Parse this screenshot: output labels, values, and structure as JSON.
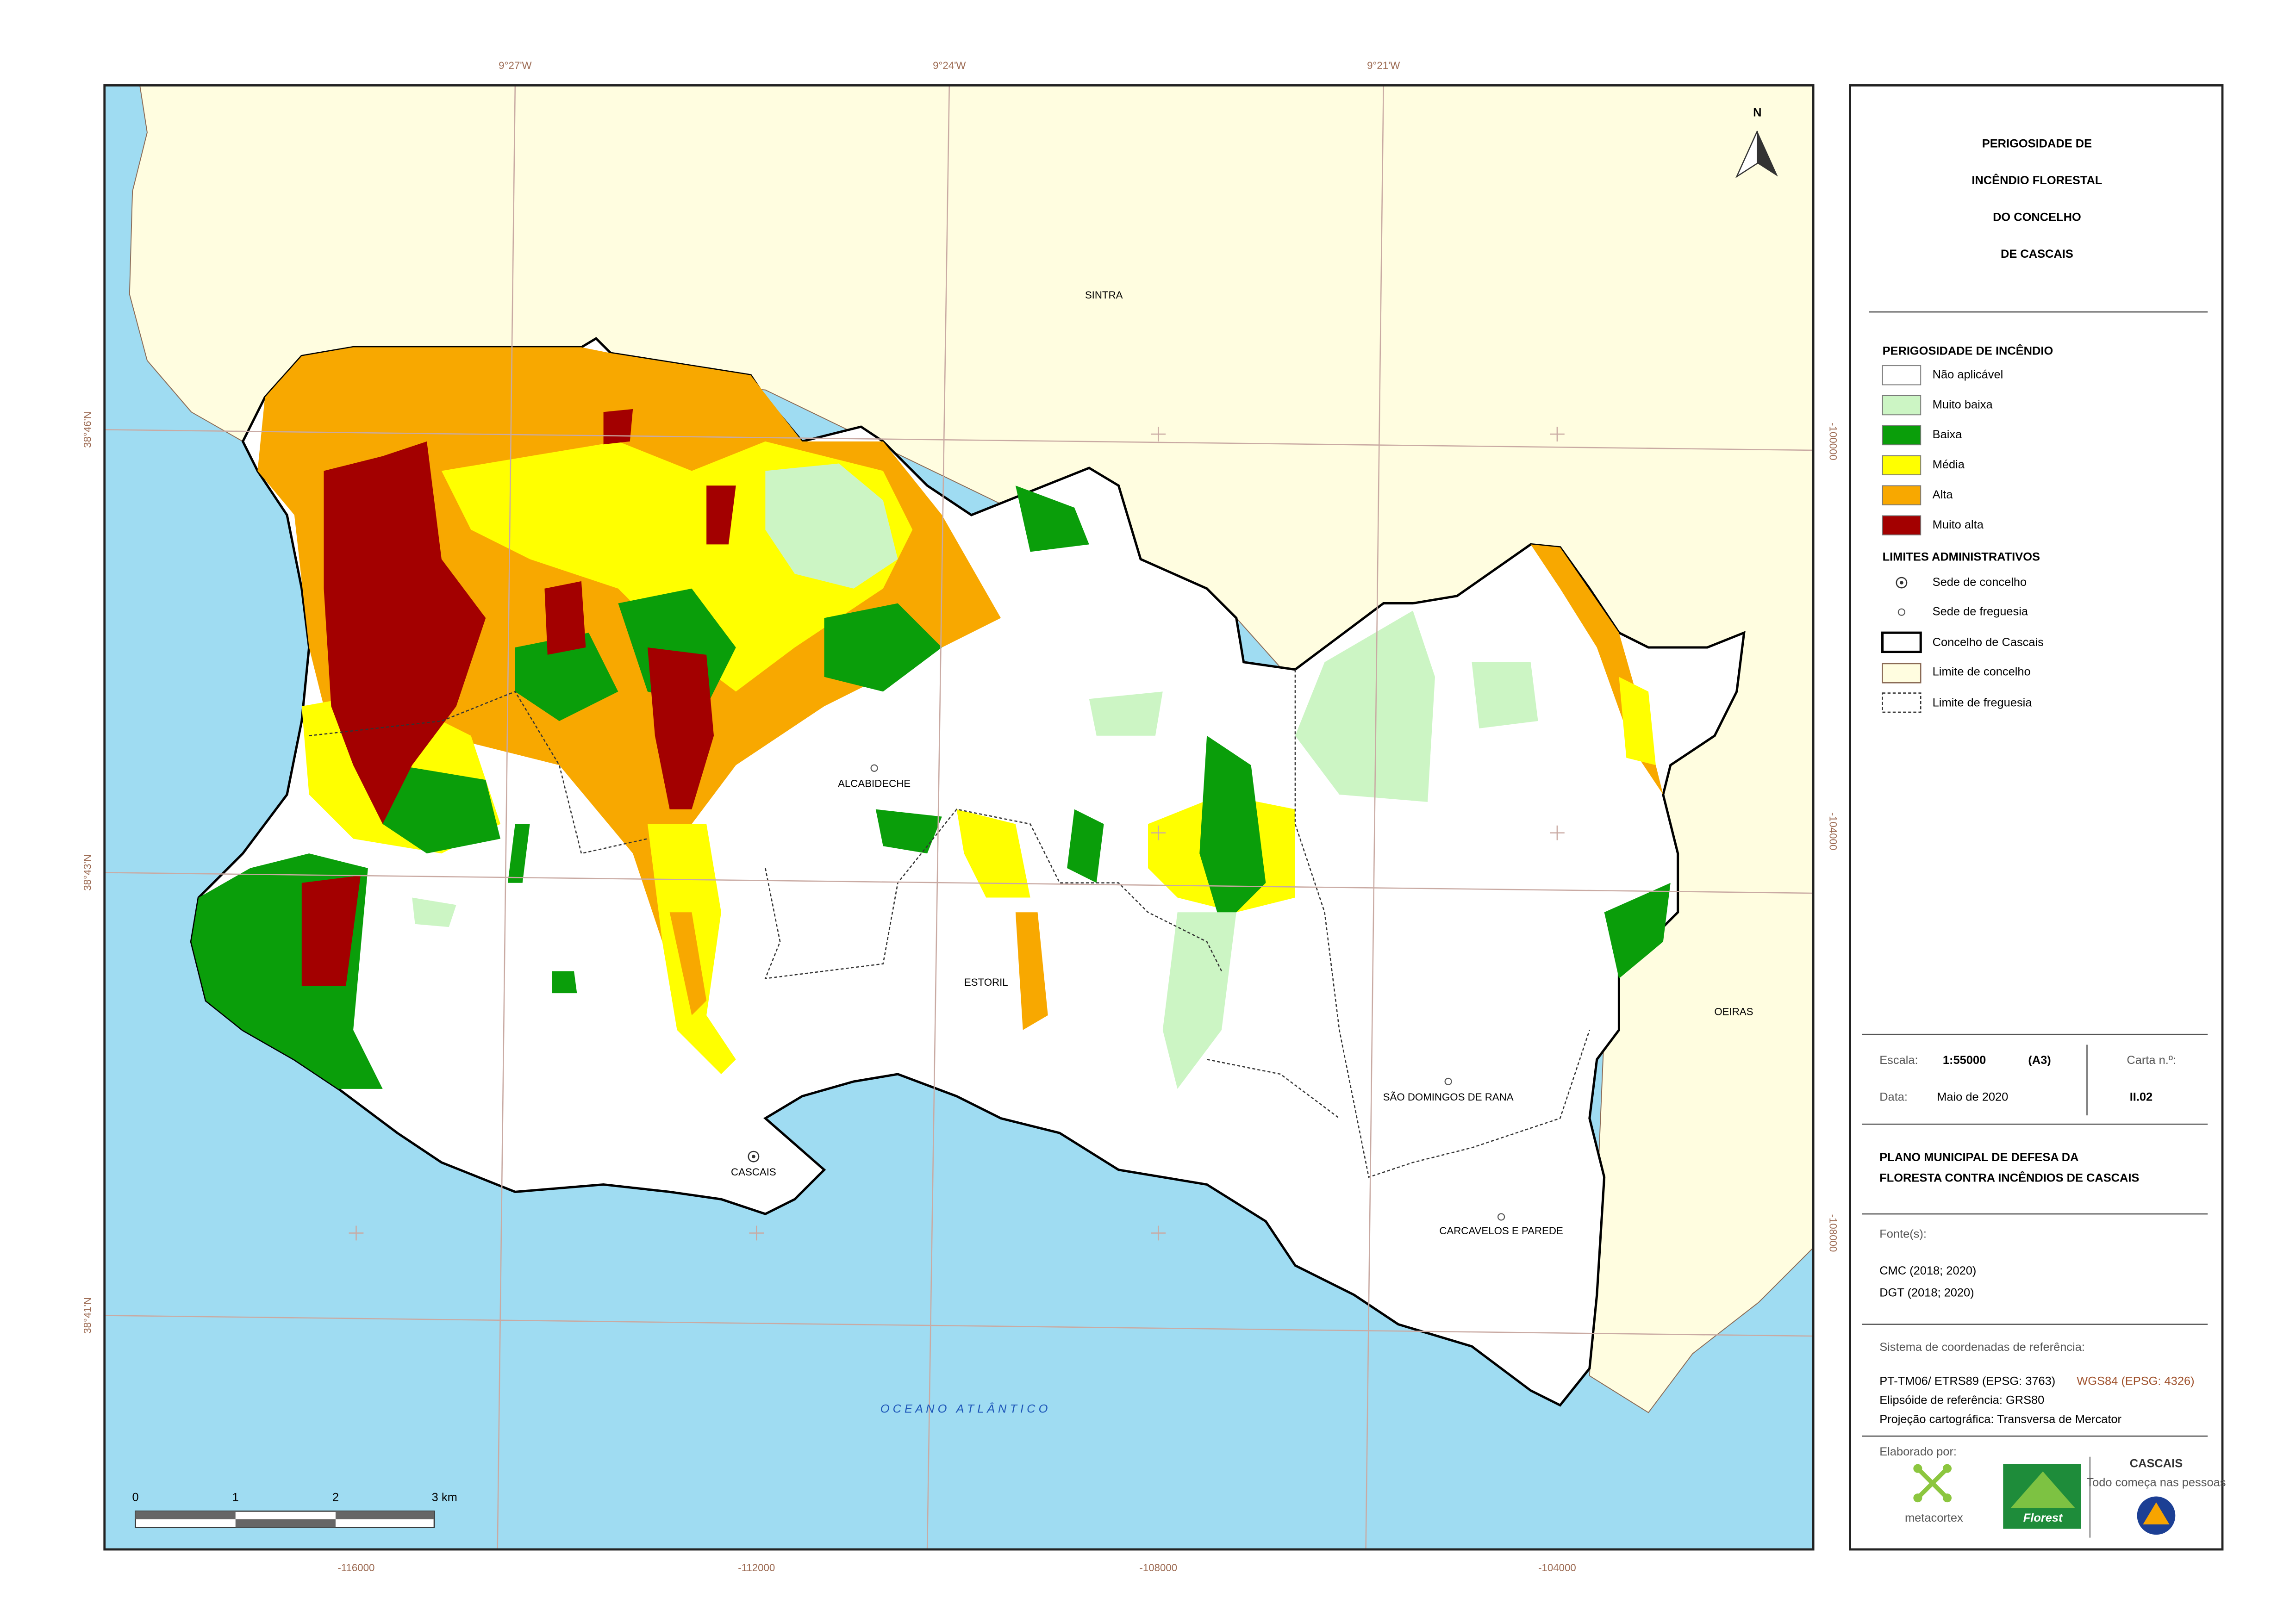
{
  "map": {
    "grid_labels": {
      "top": [
        "9°27'W",
        "9°24'W",
        "9°21'W"
      ],
      "left": [
        "38°46'N",
        "38°43'N",
        "38°41'N"
      ],
      "bottom": [
        "-116000",
        "-112000",
        "-108000",
        "-104000"
      ],
      "right": [
        "-100000",
        "-104000",
        "-108000"
      ]
    },
    "places": {
      "sintra": "SINTRA",
      "oeiras": "OEIRAS",
      "alcabideche": "ALCABIDECHE",
      "estoril": "ESTORIL",
      "sao_domingos": "SÃO DOMINGOS DE RANA",
      "cascais": "CASCAIS",
      "carcavelos": "CARCAVELOS E PAREDE"
    },
    "ocean": "O C E A N O   A T L Â N T I C O",
    "north": "N",
    "scale_bar": [
      "0",
      "1",
      "2",
      "3 km"
    ]
  },
  "panel": {
    "title": [
      "PERIGOSIDADE DE",
      "INCÊNDIO FLORESTAL",
      "DO CONCELHO",
      "DE CASCAIS"
    ],
    "legend": {
      "title": "PERIGOSIDADE DE INCÊNDIO",
      "items": [
        {
          "label": "Não aplicável",
          "color": "#ffffff"
        },
        {
          "label": "Muito baixa",
          "color": "#ccf5c4"
        },
        {
          "label": "Baixa",
          "color": "#0a9e0a"
        },
        {
          "label": "Média",
          "color": "#ffff00"
        },
        {
          "label": "Alta",
          "color": "#f8a800"
        },
        {
          "label": "Muito alta",
          "color": "#a30000"
        }
      ]
    },
    "admin": {
      "title": "LIMITES ADMINISTRATIVOS",
      "items": [
        "Sede de concelho",
        "Sede de freguesia",
        "Concelho de Cascais",
        "Limite de concelho",
        "Limite de freguesia"
      ]
    },
    "scale": {
      "label": "Escala:",
      "value": "1:55000",
      "format": "(A3)",
      "sheet_label": "Carta n.º:",
      "sheet": "II.02",
      "date_label": "Data:",
      "date": "Maio de 2020"
    },
    "plan": [
      "PLANO MUNICIPAL DE DEFESA DA",
      "FLORESTA CONTRA INCÊNDIOS DE CASCAIS"
    ],
    "sources": {
      "title": "Fonte(s):",
      "items": [
        "CMC (2018; 2020)",
        "DGT (2018; 2020)"
      ]
    },
    "crs": {
      "title": "Sistema de coordenadas de referência:",
      "projected": "PT-TM06/ ETRS89 (EPSG: 3763)",
      "geographic": "WGS84 (EPSG: 4326)",
      "ellipsoid": "Elipsóide de referência: GRS80",
      "projection": "Projeção cartográfica: Transversa de Mercator"
    },
    "credits": {
      "title": "Elaborado por:",
      "metacortex": "metacortex",
      "florest": "Florest",
      "cascais": "CASCAIS",
      "slogan": "Todo começa nas pessoas"
    }
  }
}
